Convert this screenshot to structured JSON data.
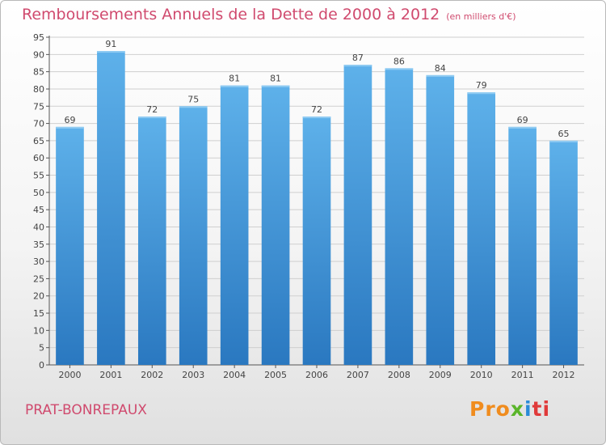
{
  "header": {
    "title": "Remboursements Annuels de la Dette de 2000 à 2012",
    "unit": "(en milliers d'€)"
  },
  "footer": {
    "town": "PRAT-BONREPAUX",
    "logo_parts": [
      "Pro",
      "x",
      "i",
      "ti"
    ]
  },
  "colors": {
    "title": "#d04a6e",
    "bar_top": "#5eb1ea",
    "bar_bottom": "#2a78c0",
    "grid": "#cfcfcf"
  },
  "chart_data": {
    "type": "bar",
    "title": "Remboursements Annuels de la Dette de 2000 à 2012",
    "xlabel": "",
    "ylabel": "",
    "categories": [
      "2000",
      "2001",
      "2002",
      "2003",
      "2004",
      "2005",
      "2006",
      "2007",
      "2008",
      "2009",
      "2010",
      "2011",
      "2012"
    ],
    "values": [
      69,
      91,
      72,
      75,
      81,
      81,
      72,
      87,
      86,
      84,
      79,
      69,
      65
    ],
    "ylim": [
      0,
      95
    ],
    "ytick_step": 5,
    "grid": true
  }
}
